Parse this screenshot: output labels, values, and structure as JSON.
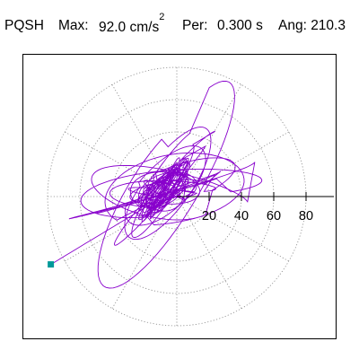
{
  "header": {
    "station": "PQSH",
    "max_label": "Max:",
    "max_value": "92.0 cm/s",
    "max_exponent": "2",
    "period_label": "Per:",
    "period_value": "0.300 s",
    "angle_label": "Ang: 210.3"
  },
  "colors": {
    "trace": "#8800cc",
    "end_marker": "#009999",
    "grid": "#888888",
    "axis": "#000000"
  },
  "chart_data": {
    "type": "line",
    "coordinate_system": "polar-orbit",
    "units": "cm/s^2",
    "radial_ticks": [
      20,
      40,
      60,
      80
    ],
    "tick_labels": [
      "20",
      "40",
      "60",
      "80"
    ],
    "grid_radii": [
      20,
      40,
      60,
      80
    ],
    "angular_grid_step_deg": 30,
    "max": 92.0,
    "max_angle_deg": 210.3,
    "end_point": {
      "x": -78,
      "y": -42
    },
    "orbit_envelope": {
      "core_radius": 18,
      "mid_radius": 36,
      "outer_radius": 58,
      "major_axis_angle_deg": 30,
      "center_offset": {
        "x": -8,
        "y": 4
      }
    }
  }
}
